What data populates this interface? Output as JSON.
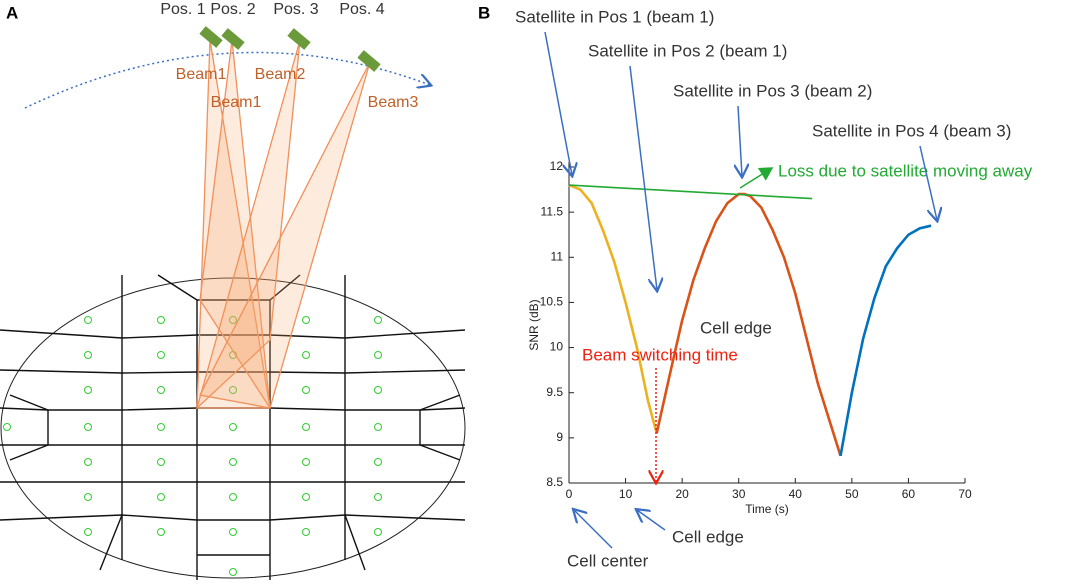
{
  "diagram": {
    "panel_a": "A",
    "panel_b": "B",
    "positions": [
      "Pos. 1",
      "Pos. 2",
      "Pos. 3",
      "Pos. 4"
    ],
    "beams": [
      "Beam1",
      "Beam1",
      "Beam2",
      "Beam3"
    ]
  },
  "chart_data": {
    "type": "line",
    "xlabel": "Time (s)",
    "ylabel": "SNR (dB)",
    "xlim": [
      0,
      70
    ],
    "xticks": [
      0,
      10,
      20,
      30,
      40,
      50,
      60,
      70
    ],
    "ylim": [
      8.5,
      12
    ],
    "yticks": [
      8.5,
      9,
      9.5,
      10,
      10.5,
      11,
      11.5,
      12
    ],
    "series": [
      {
        "color": "#edb120",
        "x": [
          0,
          2,
          4,
          6,
          8,
          10,
          12,
          14,
          15.5
        ],
        "values": [
          11.8,
          11.75,
          11.6,
          11.3,
          10.95,
          10.5,
          10.0,
          9.4,
          9.05
        ]
      },
      {
        "color": "#d95319",
        "x": [
          15.5,
          18,
          20,
          22,
          24,
          26,
          28,
          30,
          31,
          32,
          34,
          36,
          38,
          40,
          42,
          44,
          46,
          48
        ],
        "values": [
          9.05,
          9.75,
          10.3,
          10.75,
          11.1,
          11.4,
          11.6,
          11.7,
          11.7,
          11.68,
          11.55,
          11.3,
          11.0,
          10.6,
          10.1,
          9.6,
          9.2,
          8.8
        ]
      },
      {
        "color": "#0072bd",
        "x": [
          48,
          50,
          52,
          54,
          56,
          58,
          60,
          62,
          64
        ],
        "values": [
          8.8,
          9.5,
          10.1,
          10.55,
          10.9,
          11.1,
          11.25,
          11.32,
          11.35
        ]
      },
      {
        "color": "#22aa33",
        "x": [
          0,
          43
        ],
        "values": [
          11.8,
          11.65
        ]
      }
    ],
    "annotations": [
      "Satellite in Pos 1 (beam 1)",
      "Satellite in Pos 2 (beam 1)",
      "Satellite in Pos 3 (beam 2)",
      "Satellite in Pos 4 (beam 3)",
      "Loss due to satellite moving away",
      "Cell edge",
      "Beam switching time",
      "Cell edge",
      "Cell center"
    ]
  }
}
